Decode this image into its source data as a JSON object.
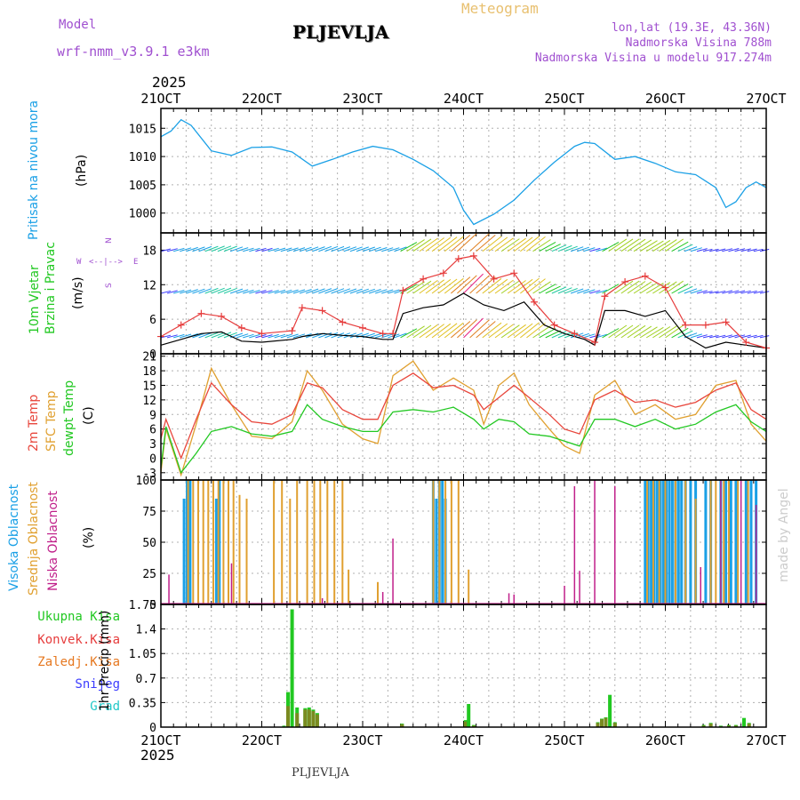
{
  "header": {
    "model_label": "Model",
    "model_name": "wrf-nmm_v3.9.1 e3km",
    "station": "PLJEVLJA",
    "product": "Meteogram",
    "lonlat": "lon,lat (19.3E, 43.36N)",
    "altitude": "Nadmorska Visina 788m",
    "model_altitude": "Nadmorska Visina u modelu 917.274m",
    "year_top": "2025",
    "year_bottom": "2025",
    "footer_station": "PLJEVLJA",
    "credit": "made by Angel"
  },
  "colors": {
    "pressure": "#1aa0e6",
    "wind": "#000000",
    "gust": "#e63c3c",
    "t2m": "#e8463c",
    "tsfc": "#e0a030",
    "dewpt": "#22c822",
    "cloud_high": "#1aa0e6",
    "cloud_mid": "#e0a030",
    "cloud_low": "#c0208a",
    "precip_total": "#22c822",
    "precip_conv": "#e63c3c",
    "precip_strat": "#e67820",
    "snow": "#3c3cff",
    "hail": "#22c8c8"
  },
  "chart_data": [
    {
      "type": "line",
      "panel": "pressure",
      "title": "Pritisak na nivou mora",
      "ylabel": "(hPa)",
      "ylim": [
        996.5,
        1018.5
      ],
      "yticks": [
        1000,
        1005,
        1010,
        1015
      ],
      "x_days": [
        21,
        22,
        23,
        24,
        25,
        26,
        27
      ],
      "x_labels": [
        "21OCT",
        "22OCT",
        "23OCT",
        "24OCT",
        "25OCT",
        "26OCT",
        "27OCT"
      ],
      "series": [
        {
          "name": "Pressure",
          "x": [
            21.0,
            21.1,
            21.2,
            21.3,
            21.5,
            21.7,
            21.9,
            22.1,
            22.3,
            22.5,
            22.7,
            22.9,
            23.1,
            23.3,
            23.5,
            23.7,
            23.9,
            24.0,
            24.1,
            24.3,
            24.5,
            24.7,
            24.9,
            25.1,
            25.2,
            25.3,
            25.5,
            25.7,
            25.9,
            26.1,
            26.3,
            26.5,
            26.6,
            26.7,
            26.8,
            26.9,
            27.0
          ],
          "values": [
            1013.5,
            1014.5,
            1016.5,
            1015.5,
            1011,
            1010.2,
            1011.6,
            1011.7,
            1010.8,
            1008.3,
            1009.5,
            1010.8,
            1011.8,
            1011.2,
            1009.5,
            1007.5,
            1004.5,
            1000.5,
            998.0,
            999.8,
            1002.3,
            1005.8,
            1009.0,
            1011.8,
            1012.5,
            1012.3,
            1009.5,
            1010.0,
            1008.8,
            1007.3,
            1006.8,
            1004.5,
            1001.0,
            1002.0,
            1004.5,
            1005.5,
            1004.5
          ]
        }
      ]
    },
    {
      "type": "line",
      "panel": "wind",
      "title": "10m Vjetar Brzina i Pravac",
      "ylabel": "(m/s)",
      "ylim": [
        0,
        21
      ],
      "yticks": [
        0,
        6,
        12,
        18
      ],
      "compass": {
        "north": "N",
        "east": "E",
        "west": "W",
        "south": "S"
      },
      "series": [
        {
          "name": "Wind speed",
          "x": [
            21.0,
            21.2,
            21.4,
            21.6,
            21.8,
            22.0,
            22.3,
            22.4,
            22.6,
            22.8,
            23.0,
            23.2,
            23.3,
            23.4,
            23.6,
            23.8,
            24.0,
            24.2,
            24.4,
            24.6,
            24.8,
            25.0,
            25.2,
            25.3,
            25.4,
            25.6,
            25.8,
            26.0,
            26.2,
            26.4,
            26.6,
            26.8,
            27.0
          ],
          "values": [
            1.5,
            2.5,
            3.5,
            3.8,
            2.2,
            2.0,
            2.5,
            3.0,
            3.5,
            3.2,
            3.0,
            2.5,
            2.5,
            7.0,
            8.0,
            8.5,
            10.5,
            8.5,
            7.5,
            9.0,
            5.0,
            3.5,
            2.5,
            1.5,
            7.5,
            7.5,
            6.5,
            7.5,
            3.0,
            1.0,
            2.0,
            1.5,
            1.0
          ]
        },
        {
          "name": "Wind gust",
          "x": [
            21.0,
            21.2,
            21.4,
            21.6,
            21.8,
            22.0,
            22.3,
            22.4,
            22.6,
            22.8,
            23.0,
            23.2,
            23.3,
            23.4,
            23.6,
            23.8,
            23.95,
            24.1,
            24.3,
            24.5,
            24.7,
            24.9,
            25.1,
            25.3,
            25.4,
            25.6,
            25.8,
            26.0,
            26.2,
            26.4,
            26.6,
            26.8,
            27.0
          ],
          "values": [
            3.0,
            5.0,
            7.0,
            6.5,
            4.5,
            3.5,
            4.0,
            8.0,
            7.5,
            5.5,
            4.5,
            3.5,
            3.5,
            11.0,
            13.0,
            14.0,
            16.5,
            17.0,
            13.0,
            14.0,
            9.0,
            5.0,
            3.5,
            2.0,
            10.0,
            12.5,
            13.5,
            11.5,
            5.0,
            5.0,
            5.5,
            2.0,
            1.0
          ]
        }
      ]
    },
    {
      "type": "line",
      "panel": "temperature",
      "title": "2m Temp / SFC Temp / dewpt Temp",
      "label_2m": "2m Temp",
      "label_sfc": "SFC Temp",
      "label_dew": "dewpt Temp",
      "ylabel": "(C)",
      "ylim": [
        -4.5,
        21.5
      ],
      "yticks": [
        -3,
        0,
        3,
        6,
        9,
        12,
        15,
        18,
        21
      ],
      "series": [
        {
          "name": "2m Temp",
          "x": [
            21.0,
            21.05,
            21.2,
            21.35,
            21.5,
            21.7,
            21.9,
            22.1,
            22.3,
            22.45,
            22.6,
            22.8,
            23.0,
            23.15,
            23.3,
            23.5,
            23.7,
            23.9,
            24.1,
            24.2,
            24.35,
            24.5,
            24.65,
            24.85,
            25.0,
            25.15,
            25.3,
            25.5,
            25.7,
            25.9,
            26.1,
            26.3,
            26.5,
            26.7,
            26.85,
            27.0
          ],
          "values": [
            4,
            8,
            0,
            8,
            15.5,
            11,
            7.5,
            7,
            9,
            15.5,
            14.5,
            10,
            8,
            8,
            15,
            17.5,
            14.5,
            15,
            13,
            10,
            12.5,
            15,
            12.5,
            9,
            6,
            5,
            12,
            14,
            11.5,
            12,
            10.5,
            11.5,
            14,
            15.5,
            10,
            8
          ]
        },
        {
          "name": "SFC Temp",
          "x": [
            21.0,
            21.05,
            21.2,
            21.35,
            21.5,
            21.7,
            21.9,
            22.1,
            22.3,
            22.45,
            22.6,
            22.8,
            23.0,
            23.15,
            23.3,
            23.5,
            23.7,
            23.9,
            24.1,
            24.2,
            24.35,
            24.5,
            24.65,
            24.85,
            25.0,
            25.15,
            25.3,
            25.5,
            25.7,
            25.9,
            26.1,
            26.3,
            26.5,
            26.7,
            26.85,
            27.0
          ],
          "values": [
            -3,
            6,
            -3.5,
            7,
            18.5,
            11,
            4.5,
            4,
            7.5,
            18,
            14,
            7,
            4,
            3,
            17,
            20,
            14,
            16.5,
            14,
            7,
            15,
            17.5,
            11,
            6,
            2.5,
            1,
            13,
            16,
            9,
            11,
            8,
            9,
            15,
            16,
            7,
            3.5
          ]
        },
        {
          "name": "dewpt Temp",
          "x": [
            21.0,
            21.05,
            21.2,
            21.35,
            21.5,
            21.7,
            21.9,
            22.1,
            22.3,
            22.45,
            22.6,
            22.8,
            23.0,
            23.15,
            23.3,
            23.5,
            23.7,
            23.9,
            24.1,
            24.2,
            24.35,
            24.5,
            24.65,
            24.85,
            25.0,
            25.15,
            25.3,
            25.5,
            25.7,
            25.9,
            26.1,
            26.3,
            26.5,
            26.7,
            26.85,
            27.0
          ],
          "values": [
            -2,
            6.5,
            -3,
            1,
            5.5,
            6.5,
            5,
            4.5,
            5.5,
            11,
            8,
            6.5,
            5.5,
            5.5,
            9.5,
            10,
            9.5,
            10.5,
            8,
            6,
            8,
            7.5,
            5,
            4.5,
            3.5,
            2.5,
            8,
            8,
            6.5,
            8,
            6,
            7,
            9.5,
            11,
            7.5,
            5.5
          ]
        }
      ]
    },
    {
      "type": "bar",
      "panel": "clouds",
      "title": "Visoka / Srednja / Niska Oblacnost",
      "label_high": "Visoka Oblacnost",
      "label_mid": "Srednja Oblacnost",
      "label_low": "Niska Oblacnost",
      "ylabel": "(%)",
      "ylim": [
        0,
        100
      ],
      "yticks": [
        0,
        25,
        50,
        75,
        100
      ],
      "high_x": [
        21.23,
        21.26,
        21.29,
        21.55,
        21.58,
        23.7,
        23.73,
        23.76,
        23.79,
        23.82,
        25.8,
        25.83,
        25.86,
        25.89,
        25.92,
        25.95,
        25.98,
        26.01,
        26.04,
        26.07,
        26.1,
        26.13,
        26.16,
        26.2,
        26.25,
        26.3,
        26.4,
        26.45,
        26.55,
        26.6,
        26.65,
        26.7,
        26.8,
        26.85,
        26.9
      ],
      "high_values": [
        85,
        100,
        100,
        85,
        100,
        100,
        85,
        100,
        100,
        85,
        100,
        100,
        100,
        100,
        100,
        100,
        100,
        100,
        100,
        100,
        100,
        100,
        100,
        100,
        100,
        100,
        100,
        100,
        100,
        100,
        100,
        100,
        100,
        100,
        100
      ],
      "mid_x": [
        21.27,
        21.32,
        21.37,
        21.42,
        21.47,
        21.52,
        21.57,
        21.62,
        21.67,
        21.72,
        21.78,
        21.85,
        22.12,
        22.2,
        22.28,
        22.35,
        22.45,
        22.52,
        22.58,
        22.65,
        22.72,
        22.8,
        22.86,
        23.15,
        23.7,
        23.76,
        23.82,
        23.88,
        23.95,
        24.05,
        25.82,
        25.88,
        25.94,
        26.0,
        26.1,
        26.2,
        26.3,
        26.45,
        26.5,
        26.58,
        26.63,
        26.72,
        26.82
      ],
      "mid_values": [
        100,
        100,
        100,
        100,
        100,
        100,
        100,
        100,
        100,
        100,
        88,
        85,
        100,
        100,
        85,
        100,
        100,
        100,
        100,
        100,
        100,
        100,
        28,
        18,
        100,
        100,
        100,
        100,
        100,
        28,
        100,
        100,
        100,
        100,
        100,
        100,
        85,
        100,
        100,
        100,
        100,
        100,
        100
      ],
      "low_x": [
        21.08,
        21.7,
        22.6,
        23.2,
        23.3,
        24.45,
        24.5,
        25.0,
        25.1,
        25.15,
        25.3,
        25.5,
        26.35,
        26.55,
        26.75,
        26.9
      ],
      "low_values": [
        24,
        33,
        5,
        10,
        53,
        9,
        8,
        15,
        95,
        27,
        100,
        95,
        30,
        100,
        100,
        80
      ]
    },
    {
      "type": "bar",
      "panel": "precip",
      "title": "1hr Precip",
      "ylabel": "1hr Precip (mm)",
      "ylim": [
        0,
        1.75
      ],
      "yticks": [
        0,
        0.35,
        0.7,
        1.05,
        1.4,
        1.75
      ],
      "legend": [
        "Ukupna Kisa",
        "Konvek.Kisa",
        "Zaledj.Kisa",
        "Snijeg",
        "Grad"
      ],
      "x": [
        22.22,
        22.26,
        22.3,
        22.35,
        22.43,
        22.47,
        22.51,
        22.55,
        23.39,
        24.02,
        24.05,
        24.1,
        25.33,
        25.37,
        25.41,
        25.45,
        25.5,
        26.38,
        26.45,
        26.55,
        26.63,
        26.7,
        26.78,
        26.83
      ],
      "total": [
        0.02,
        0.5,
        1.68,
        0.28,
        0.27,
        0.28,
        0.25,
        0.2,
        0.05,
        0.1,
        0.33,
        0.03,
        0.07,
        0.12,
        0.14,
        0.46,
        0.07,
        0.03,
        0.06,
        0.02,
        0.03,
        0.03,
        0.13,
        0.06
      ],
      "convective": [
        0.0,
        0.3,
        0.0,
        0.2,
        0.25,
        0.25,
        0.23,
        0.18,
        0.04,
        0.08,
        0.0,
        0.02,
        0.06,
        0.11,
        0.13,
        0.0,
        0.06,
        0.02,
        0.05,
        0.01,
        0.02,
        0.02,
        0.0,
        0.05
      ]
    }
  ]
}
